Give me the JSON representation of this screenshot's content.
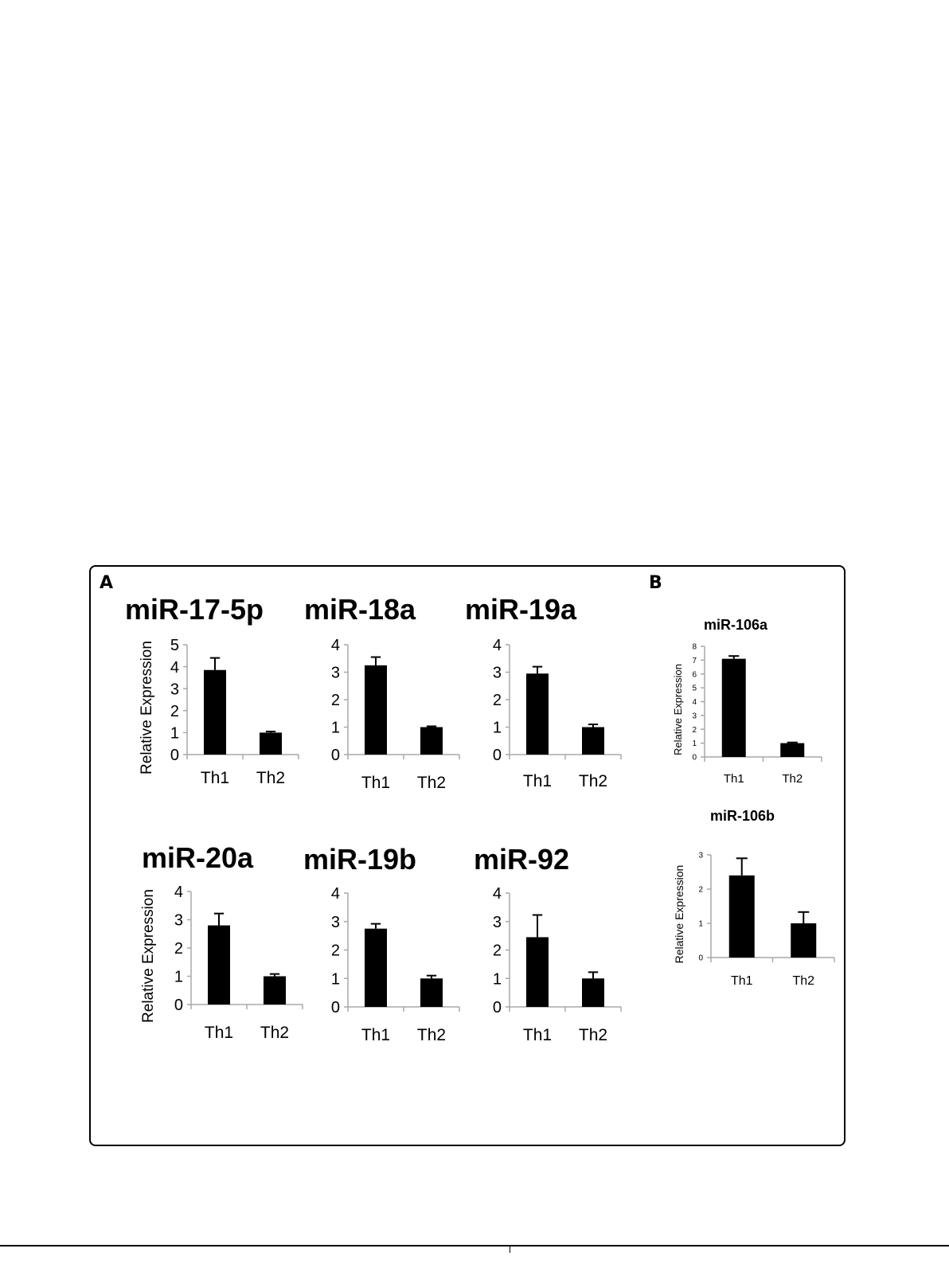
{
  "figure": {
    "panel_labels": {
      "a": "A",
      "b": "B"
    }
  },
  "chart_data": [
    {
      "type": "bar",
      "title": "miR-17-5p",
      "ylabel": "Relative Expression",
      "categories": [
        "Th1",
        "Th2"
      ],
      "values": [
        3.85,
        1.0
      ],
      "errors": [
        0.55,
        0.05
      ],
      "ylim": [
        0,
        5
      ],
      "yticks": [
        "0",
        "1",
        "2",
        "3",
        "4",
        "5"
      ],
      "grid": false,
      "bar_color": "#000000"
    },
    {
      "type": "bar",
      "title": "miR-18a",
      "ylabel": "",
      "categories": [
        "Th1",
        "Th2"
      ],
      "values": [
        3.25,
        1.0
      ],
      "errors": [
        0.3,
        0.03
      ],
      "ylim": [
        0,
        4
      ],
      "yticks": [
        "0",
        "1",
        "2",
        "3",
        "4"
      ],
      "grid": false,
      "bar_color": "#000000"
    },
    {
      "type": "bar",
      "title": "miR-19a",
      "ylabel": "",
      "categories": [
        "Th1",
        "Th2"
      ],
      "values": [
        2.95,
        1.0
      ],
      "errors": [
        0.25,
        0.1
      ],
      "ylim": [
        0,
        4
      ],
      "yticks": [
        "0",
        "1",
        "2",
        "3",
        "4"
      ],
      "grid": false,
      "bar_color": "#000000"
    },
    {
      "type": "bar",
      "title": "miR-20a",
      "ylabel": "Relative Expression",
      "categories": [
        "Th1",
        "Th2"
      ],
      "values": [
        2.8,
        1.0
      ],
      "errors": [
        0.42,
        0.08
      ],
      "ylim": [
        0,
        4
      ],
      "yticks": [
        "0",
        "1",
        "2",
        "3",
        "4"
      ],
      "grid": false,
      "bar_color": "#000000"
    },
    {
      "type": "bar",
      "title": "miR-19b",
      "ylabel": "",
      "categories": [
        "Th1",
        "Th2"
      ],
      "values": [
        2.75,
        1.0
      ],
      "errors": [
        0.17,
        0.1
      ],
      "ylim": [
        0,
        4
      ],
      "yticks": [
        "0",
        "1",
        "2",
        "3",
        "4"
      ],
      "grid": false,
      "bar_color": "#000000"
    },
    {
      "type": "bar",
      "title": "miR-92",
      "ylabel": "",
      "categories": [
        "Th1",
        "Th2"
      ],
      "values": [
        2.45,
        1.0
      ],
      "errors": [
        0.78,
        0.22
      ],
      "ylim": [
        0,
        4
      ],
      "yticks": [
        "0",
        "1",
        "2",
        "3",
        "4"
      ],
      "grid": false,
      "bar_color": "#000000"
    },
    {
      "type": "bar",
      "title": "miR-106a",
      "ylabel": "Relative Expression",
      "categories": [
        "Th1",
        "Th2"
      ],
      "values": [
        7.1,
        1.0
      ],
      "errors": [
        0.2,
        0.05
      ],
      "ylim": [
        0,
        8
      ],
      "yticks": [
        "0",
        "1",
        "2",
        "3",
        "4",
        "5",
        "6",
        "7",
        "8"
      ],
      "grid": false,
      "bar_color": "#000000"
    },
    {
      "type": "bar",
      "title": "miR-106b",
      "ylabel": "Relative Expression",
      "categories": [
        "Th1",
        "Th2"
      ],
      "values": [
        2.4,
        1.0
      ],
      "errors": [
        0.5,
        0.33
      ],
      "ylim": [
        0,
        3
      ],
      "yticks": [
        "0",
        "1",
        "2",
        "3"
      ],
      "grid": false,
      "bar_color": "#000000"
    }
  ]
}
